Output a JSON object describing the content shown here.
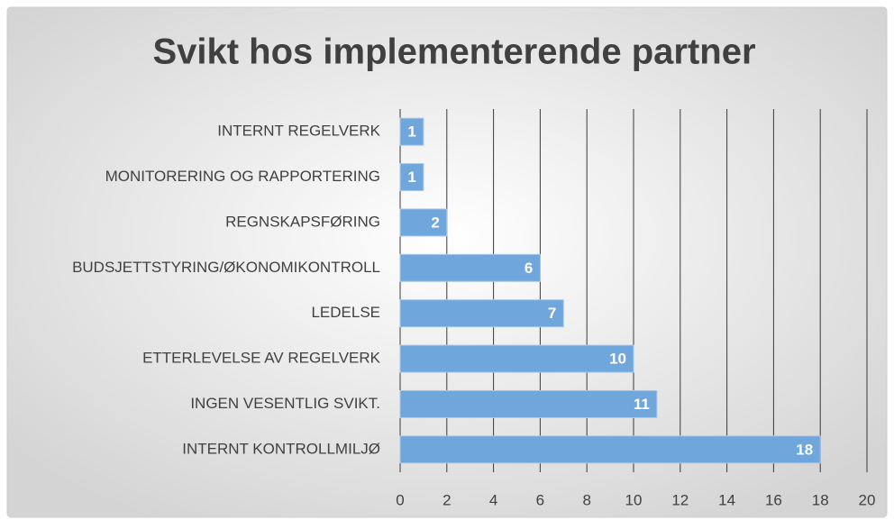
{
  "chart_data": {
    "type": "barh",
    "title": "Svikt hos implementerende partner",
    "categories": [
      "INTERNT REGELVERK",
      "MONITORERING OG RAPPORTERING",
      "REGNSKAPSFØRING",
      "BUDSJETTSTYRING/ØKONOMIKONTROLL",
      "LEDELSE",
      "ETTERLEVELSE AV REGELVERK",
      "INGEN VESENTLIG SVIKT.",
      "INTERNT KONTROLLMILJØ"
    ],
    "values": [
      1,
      1,
      2,
      6,
      7,
      10,
      11,
      18
    ],
    "color": "#6fa6dc",
    "xlim": [
      0,
      20
    ],
    "xticks": [
      0,
      2,
      4,
      6,
      8,
      10,
      12,
      14,
      16,
      18,
      20
    ],
    "grid": true
  }
}
